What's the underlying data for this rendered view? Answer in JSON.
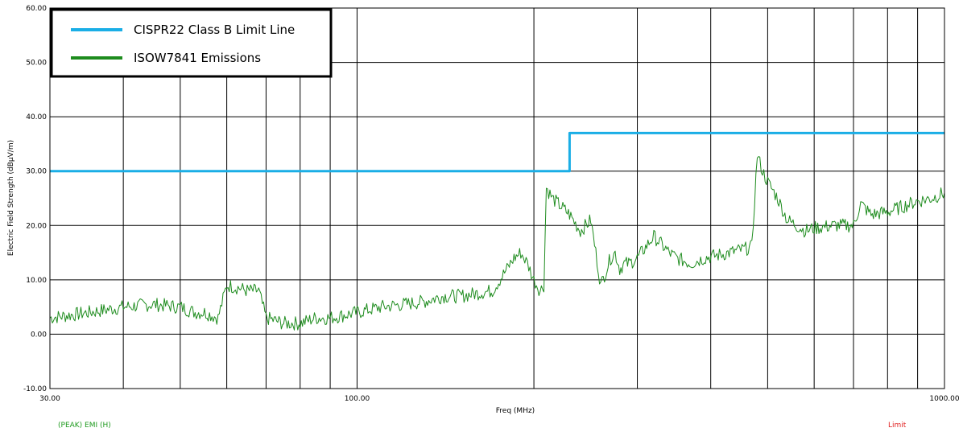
{
  "chart_data": {
    "type": "line",
    "xlabel": "Freq (MHz)",
    "ylabel": "Electric Field Strength (dBµV/m)",
    "xscale": "log",
    "xlim": [
      30,
      1000
    ],
    "ylim": [
      -10,
      60
    ],
    "x_tick_labels": [
      {
        "value": 30,
        "label": "30.00"
      },
      {
        "value": 100,
        "label": "100.00"
      },
      {
        "value": 1000,
        "label": "1000.00"
      }
    ],
    "y_tick_labels": [
      {
        "value": -10,
        "label": "-10.00"
      },
      {
        "value": 0,
        "label": "0.00"
      },
      {
        "value": 10,
        "label": "10.00"
      },
      {
        "value": 20,
        "label": "20.00"
      },
      {
        "value": 30,
        "label": "30.00"
      },
      {
        "value": 40,
        "label": "40.00"
      },
      {
        "value": 50,
        "label": "50.00"
      },
      {
        "value": 60,
        "label": "60.00"
      }
    ],
    "x_gridlines": [
      30,
      40,
      50,
      60,
      70,
      80,
      90,
      100,
      200,
      300,
      400,
      500,
      600,
      700,
      800,
      900,
      1000
    ],
    "y_gridlines": [
      -10,
      0,
      10,
      20,
      30,
      40,
      50,
      60
    ],
    "grid": true,
    "legend_position": "top-left",
    "series": [
      {
        "name": "CISPR22 Class B Limit Line",
        "color": "#1aaee6",
        "step": true,
        "x": [
          30,
          230,
          230,
          1000
        ],
        "y": [
          30,
          30,
          37,
          37
        ]
      },
      {
        "name": "ISOW7841 Emissions",
        "color": "#1e8c1e",
        "x": [
          30,
          35,
          40,
          45,
          50,
          53,
          55,
          58,
          60,
          63,
          65,
          68,
          70,
          75,
          80,
          85,
          90,
          95,
          100,
          110,
          120,
          130,
          140,
          150,
          160,
          170,
          175,
          180,
          185,
          190,
          195,
          200,
          205,
          208,
          210,
          215,
          220,
          225,
          230,
          240,
          250,
          260,
          270,
          275,
          280,
          285,
          290,
          300,
          320,
          340,
          350,
          370,
          390,
          410,
          430,
          450,
          470,
          480,
          490,
          500,
          520,
          540,
          560,
          580,
          600,
          650,
          700,
          720,
          750,
          800,
          850,
          900,
          950,
          1000
        ],
        "y": [
          3,
          4,
          5,
          5.5,
          5,
          4,
          4,
          3,
          9,
          8.5,
          8,
          8,
          3,
          2,
          2,
          3,
          3,
          3.5,
          4,
          5,
          5.5,
          6,
          7,
          7,
          7.5,
          8,
          10,
          12,
          14,
          15,
          13,
          10,
          8,
          9,
          27,
          25,
          24,
          23,
          22,
          19,
          21,
          9,
          14,
          15,
          12,
          13,
          13,
          14,
          18,
          15,
          14,
          13,
          14,
          14.5,
          15,
          15.5,
          16,
          33,
          30,
          28,
          25,
          21,
          20,
          19,
          19.5,
          20,
          20,
          24,
          22,
          22.5,
          23.5,
          24.5,
          25,
          26
        ]
      }
    ]
  },
  "footer": {
    "left_label": "(PEAK) EMI (H)",
    "left_color": "#1e9a1e",
    "right_label": "Limit",
    "right_color": "#e01e1e"
  }
}
